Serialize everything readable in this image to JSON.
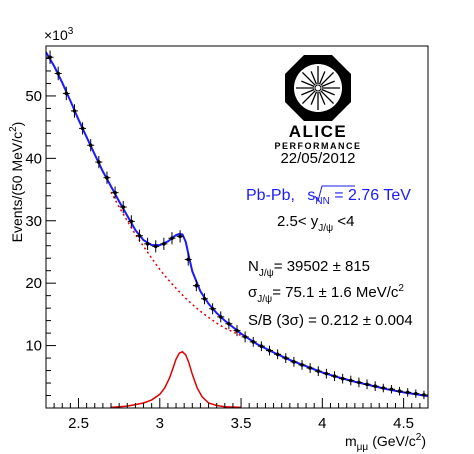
{
  "chart_data": {
    "type": "line",
    "xlabel": "m",
    "xlabel_sub": "μμ",
    "xlabel_unit": "(GeV/c",
    "xlabel_unit_sup": "2",
    "xlabel_unit_end": ")",
    "ylabel": "Events/(50 MeV/c",
    "ylabel_sup": "2",
    "ylabel_end": ")",
    "y_exponent_prefix": "×10",
    "y_exponent_power": "3",
    "xlim": [
      2.3,
      4.65
    ],
    "ylim": [
      0,
      58
    ],
    "x_ticks": [
      "2.5",
      "3",
      "3.5",
      "4",
      "4.5"
    ],
    "x_tick_values": [
      2.5,
      3.0,
      3.5,
      4.0,
      4.5
    ],
    "y_ticks": [
      "10",
      "20",
      "30",
      "40",
      "50"
    ],
    "y_tick_values": [
      10,
      20,
      30,
      40,
      50
    ],
    "series": [
      {
        "kind": "data_points",
        "color": "#000000",
        "x": [
          2.325,
          2.375,
          2.425,
          2.475,
          2.525,
          2.575,
          2.625,
          2.675,
          2.725,
          2.775,
          2.825,
          2.875,
          2.925,
          2.975,
          3.025,
          3.075,
          3.125,
          3.175,
          3.225,
          3.275,
          3.325,
          3.375,
          3.425,
          3.475,
          3.525,
          3.575,
          3.625,
          3.675,
          3.725,
          3.775,
          3.825,
          3.875,
          3.925,
          3.975,
          4.025,
          4.075,
          4.125,
          4.175,
          4.225,
          4.275,
          4.325,
          4.375,
          4.425,
          4.475,
          4.525,
          4.575,
          4.625
        ],
        "y": [
          56.2,
          53.6,
          50.4,
          47.6,
          44.8,
          42.1,
          39.4,
          36.9,
          34.5,
          32.2,
          29.9,
          27.6,
          26.3,
          25.9,
          26.3,
          27.2,
          27.5,
          23.8,
          19.6,
          17.5,
          15.9,
          14.6,
          13.5,
          12.4,
          11.4,
          10.6,
          9.9,
          9.2,
          8.6,
          8.0,
          7.4,
          6.9,
          6.4,
          5.9,
          5.5,
          5.1,
          4.7,
          4.4,
          4.1,
          3.8,
          3.5,
          3.2,
          3.0,
          2.7,
          2.5,
          2.3,
          2.1
        ],
        "yerr": [
          0.6,
          0.6,
          0.6,
          0.6,
          0.5,
          0.5,
          0.5,
          0.5,
          0.5,
          0.5,
          0.5,
          0.5,
          0.5,
          0.5,
          0.5,
          0.5,
          0.5,
          0.5,
          0.4,
          0.4,
          0.4,
          0.4,
          0.4,
          0.4,
          0.4,
          0.3,
          0.3,
          0.3,
          0.3,
          0.3,
          0.3,
          0.3,
          0.3,
          0.3,
          0.3,
          0.3,
          0.3,
          0.3,
          0.3,
          0.3,
          0.3,
          0.2,
          0.2,
          0.2,
          0.2,
          0.2,
          0.2
        ]
      },
      {
        "kind": "total_fit",
        "color": "#1a1aff",
        "x": [
          2.3,
          2.35,
          2.4,
          2.45,
          2.5,
          2.55,
          2.6,
          2.65,
          2.7,
          2.75,
          2.8,
          2.85,
          2.9,
          2.95,
          3.0,
          3.05,
          3.08,
          3.1,
          3.12,
          3.14,
          3.16,
          3.18,
          3.2,
          3.25,
          3.3,
          3.35,
          3.4,
          3.5,
          3.6,
          3.7,
          3.8,
          3.9,
          4.0,
          4.1,
          4.2,
          4.3,
          4.4,
          4.5,
          4.65
        ],
        "y": [
          57.0,
          54.8,
          52.1,
          49.2,
          46.2,
          43.4,
          40.6,
          37.9,
          35.5,
          33.1,
          30.8,
          28.5,
          26.9,
          26.1,
          26.1,
          26.7,
          27.3,
          27.7,
          27.9,
          27.8,
          26.6,
          24.2,
          21.9,
          18.7,
          16.7,
          15.2,
          14.0,
          11.9,
          10.2,
          8.9,
          7.7,
          6.7,
          5.7,
          4.9,
          4.2,
          3.6,
          3.0,
          2.5,
          1.9
        ]
      },
      {
        "kind": "background",
        "color": "#e00000",
        "x": [
          2.7,
          2.75,
          2.8,
          2.85,
          2.9,
          2.95,
          3.0,
          3.05,
          3.1,
          3.15,
          3.2,
          3.25,
          3.3,
          3.35,
          3.4,
          3.5
        ],
        "y": [
          34.6,
          32.2,
          30.0,
          27.8,
          25.9,
          24.0,
          22.2,
          20.6,
          19.2,
          17.8,
          16.6,
          15.5,
          14.5,
          13.6,
          12.8,
          11.6
        ]
      },
      {
        "kind": "signal",
        "color": "#e00000",
        "x": [
          2.7,
          2.8,
          2.9,
          2.95,
          3.0,
          3.03,
          3.06,
          3.08,
          3.1,
          3.12,
          3.14,
          3.16,
          3.18,
          3.2,
          3.23,
          3.26,
          3.3,
          3.35,
          3.4,
          3.5
        ],
        "y": [
          0.1,
          0.3,
          0.8,
          1.3,
          2.2,
          3.2,
          4.8,
          6.3,
          7.8,
          8.8,
          9.0,
          8.5,
          7.2,
          5.4,
          3.2,
          1.8,
          0.8,
          0.4,
          0.2,
          0.1
        ]
      }
    ],
    "grid": false,
    "legend": "none"
  },
  "annotations": {
    "logo_name": "ALICE",
    "logo_sub": "PERFORMANCE",
    "date": "22/05/2012",
    "system_prefix": "Pb-Pb, ",
    "system_s": "s",
    "system_s_sub": "NN",
    "system_suffix": " = 2.76 TeV",
    "rapidity_left": "2.5< y",
    "rapidity_sub": "J/ψ",
    "rapidity_right": " <4",
    "n_label": "N",
    "n_sub": "J/ψ",
    "n_value": "= 39502 ± 815",
    "sigma_label": "σ",
    "sigma_sub": "J/ψ",
    "sigma_value": "= 75.1 ± 1.6 MeV/c",
    "sigma_value_sup": "2",
    "sb_text": "S/B (3σ) = 0.212 ± 0.004"
  },
  "icons": {
    "logo": "alice-logo-icon"
  }
}
